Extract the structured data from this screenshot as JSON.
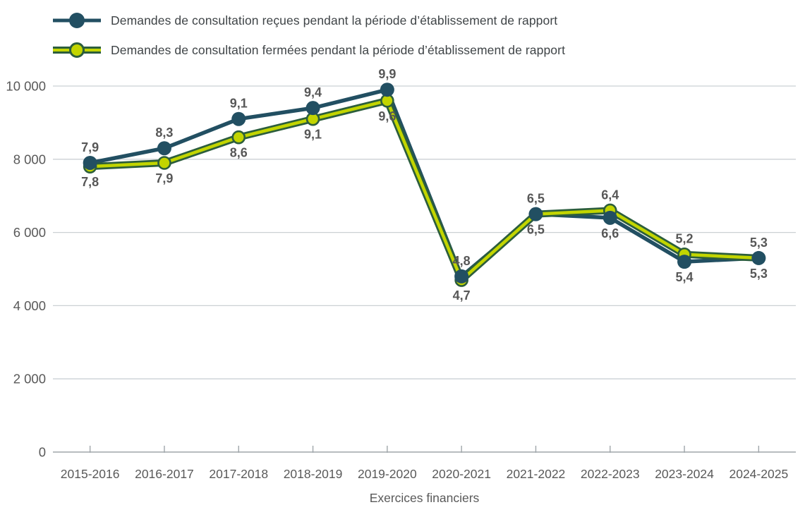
{
  "chart_data": {
    "type": "line",
    "categories": [
      "2015-2016",
      "2016-2017",
      "2017-2018",
      "2018-2019",
      "2019-2020",
      "2020-2021",
      "2021-2022",
      "2022-2023",
      "2023-2024",
      "2024-2025"
    ],
    "series": [
      {
        "name": "Demandes de consultation reçues pendant la période d’établissement de rapport",
        "values": [
          7900,
          8300,
          9100,
          9400,
          9900,
          4800,
          6500,
          6400,
          5200,
          5300
        ],
        "point_labels": [
          "7,9",
          "8,3",
          "9,1",
          "9,4",
          "9,9",
          "4,8",
          "6,5",
          "6,4",
          "5,2",
          "5,3"
        ],
        "color": "#224F62",
        "label_position": "above"
      },
      {
        "name": "Demandes de consultation fermées pendant la période d’établissement de rapport",
        "values": [
          7800,
          7900,
          8600,
          9100,
          9600,
          4700,
          6500,
          6600,
          5400,
          5300
        ],
        "point_labels": [
          "7,8",
          "7,9",
          "8,6",
          "9,1",
          "9,6",
          "4,7",
          "6,5",
          "6,6",
          "5,4",
          "5,3"
        ],
        "color": "#C2D500",
        "outline_color": "#2C5E3C",
        "label_position": "below"
      }
    ],
    "xlabel": "Exercices financiers",
    "ylim": [
      0,
      10000
    ],
    "y_ticks": [
      {
        "value": 0,
        "label": "0"
      },
      {
        "value": 2000,
        "label": "2 000"
      },
      {
        "value": 4000,
        "label": "4 000"
      },
      {
        "value": 6000,
        "label": "6 000"
      },
      {
        "value": 8000,
        "label": "8 000"
      },
      {
        "value": 10000,
        "label": "10 000"
      }
    ],
    "grid": true,
    "legend_position": "top-left",
    "colors": {
      "gridline": "#CBD1D4",
      "axis": "#9FA6AA",
      "tick_text": "#595959",
      "data_label_text": "#575757",
      "legend_text": "#3F4447"
    }
  }
}
